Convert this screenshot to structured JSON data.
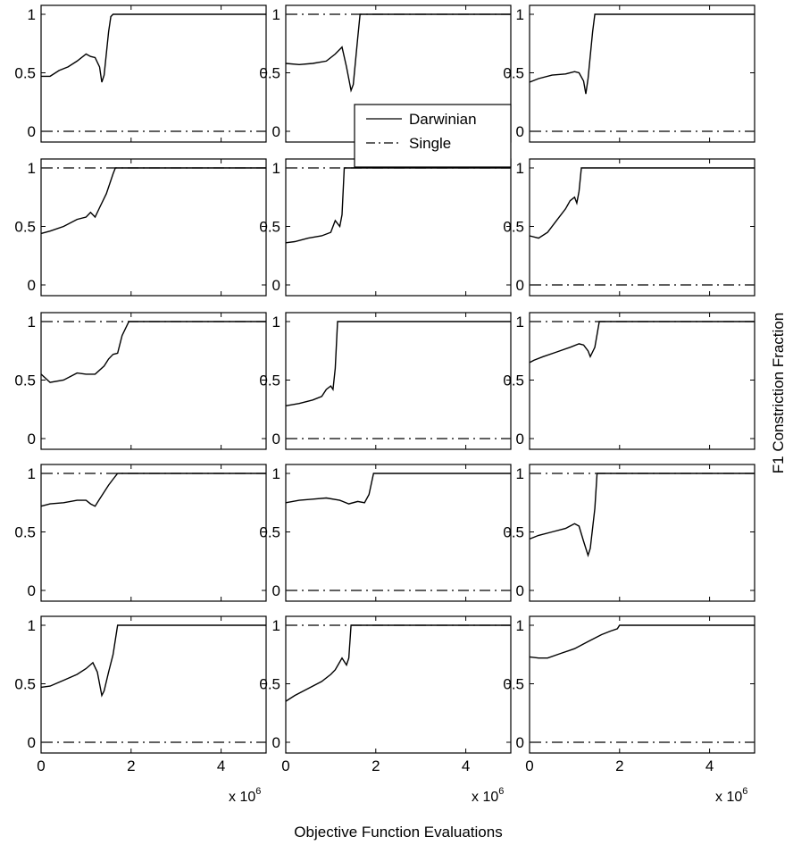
{
  "figure": {
    "xlabel": "Objective Function Evaluations",
    "ylabel": "F1 Constriction Fraction",
    "x_multiplier_prefix": "x 10",
    "x_multiplier_exp": "6",
    "legend": {
      "darwinian": "Darwinian",
      "single": "Single"
    }
  },
  "chart_data": {
    "type": "line",
    "layout": "5 rows x 3 columns small multiples",
    "x_range": [
      0,
      5
    ],
    "x_unit_note": "x 10^6",
    "y_range": [
      0,
      1
    ],
    "x_ticks": [
      "0",
      "2",
      "4"
    ],
    "y_ticks": [
      "0",
      "0.5",
      "1"
    ],
    "legend_position": "inside top-middle panel, lower-right",
    "series_styles": {
      "Darwinian": "solid",
      "Single": "dash-dot"
    },
    "panels": [
      {
        "single": 0,
        "darwinian": [
          [
            0,
            0.47
          ],
          [
            0.2,
            0.47
          ],
          [
            0.4,
            0.52
          ],
          [
            0.6,
            0.55
          ],
          [
            0.8,
            0.6
          ],
          [
            1.0,
            0.66
          ],
          [
            1.1,
            0.64
          ],
          [
            1.2,
            0.63
          ],
          [
            1.3,
            0.55
          ],
          [
            1.35,
            0.42
          ],
          [
            1.4,
            0.48
          ],
          [
            1.5,
            0.85
          ],
          [
            1.55,
            0.98
          ],
          [
            1.6,
            1
          ],
          [
            5,
            1
          ]
        ]
      },
      {
        "single": 1,
        "darwinian": [
          [
            0,
            0.58
          ],
          [
            0.3,
            0.57
          ],
          [
            0.6,
            0.58
          ],
          [
            0.9,
            0.6
          ],
          [
            1.1,
            0.66
          ],
          [
            1.25,
            0.72
          ],
          [
            1.35,
            0.55
          ],
          [
            1.45,
            0.35
          ],
          [
            1.5,
            0.4
          ],
          [
            1.6,
            0.8
          ],
          [
            1.65,
            1
          ],
          [
            5,
            1
          ]
        ]
      },
      {
        "single": 0,
        "darwinian": [
          [
            0,
            0.42
          ],
          [
            0.2,
            0.45
          ],
          [
            0.5,
            0.48
          ],
          [
            0.8,
            0.49
          ],
          [
            1.0,
            0.51
          ],
          [
            1.1,
            0.5
          ],
          [
            1.2,
            0.43
          ],
          [
            1.25,
            0.32
          ],
          [
            1.3,
            0.45
          ],
          [
            1.4,
            0.85
          ],
          [
            1.45,
            1
          ],
          [
            5,
            1
          ]
        ]
      },
      {
        "single": 1,
        "darwinian": [
          [
            0,
            0.44
          ],
          [
            0.2,
            0.46
          ],
          [
            0.5,
            0.5
          ],
          [
            0.8,
            0.56
          ],
          [
            1.0,
            0.58
          ],
          [
            1.1,
            0.62
          ],
          [
            1.2,
            0.58
          ],
          [
            1.3,
            0.66
          ],
          [
            1.45,
            0.78
          ],
          [
            1.6,
            0.95
          ],
          [
            1.65,
            1
          ],
          [
            5,
            1
          ]
        ]
      },
      {
        "single": 1,
        "darwinian": [
          [
            0,
            0.36
          ],
          [
            0.2,
            0.37
          ],
          [
            0.5,
            0.4
          ],
          [
            0.8,
            0.42
          ],
          [
            1.0,
            0.45
          ],
          [
            1.1,
            0.55
          ],
          [
            1.2,
            0.5
          ],
          [
            1.25,
            0.6
          ],
          [
            1.3,
            1
          ],
          [
            5,
            1
          ]
        ]
      },
      {
        "single": 0,
        "darwinian": [
          [
            0,
            0.42
          ],
          [
            0.2,
            0.4
          ],
          [
            0.4,
            0.45
          ],
          [
            0.6,
            0.55
          ],
          [
            0.8,
            0.65
          ],
          [
            0.9,
            0.72
          ],
          [
            1.0,
            0.75
          ],
          [
            1.05,
            0.7
          ],
          [
            1.1,
            0.8
          ],
          [
            1.15,
            1
          ],
          [
            5,
            1
          ]
        ]
      },
      {
        "single": 1,
        "darwinian": [
          [
            0,
            0.55
          ],
          [
            0.2,
            0.48
          ],
          [
            0.5,
            0.5
          ],
          [
            0.8,
            0.56
          ],
          [
            1.0,
            0.55
          ],
          [
            1.2,
            0.55
          ],
          [
            1.4,
            0.62
          ],
          [
            1.5,
            0.68
          ],
          [
            1.6,
            0.72
          ],
          [
            1.7,
            0.73
          ],
          [
            1.8,
            0.88
          ],
          [
            1.95,
            1
          ],
          [
            5,
            1
          ]
        ]
      },
      {
        "single": 0,
        "darwinian": [
          [
            0,
            0.28
          ],
          [
            0.3,
            0.3
          ],
          [
            0.6,
            0.33
          ],
          [
            0.8,
            0.36
          ],
          [
            0.9,
            0.42
          ],
          [
            1.0,
            0.45
          ],
          [
            1.05,
            0.42
          ],
          [
            1.1,
            0.6
          ],
          [
            1.15,
            1
          ],
          [
            5,
            1
          ]
        ]
      },
      {
        "single": 1,
        "darwinian": [
          [
            0,
            0.65
          ],
          [
            0.1,
            0.67
          ],
          [
            0.3,
            0.7
          ],
          [
            0.6,
            0.74
          ],
          [
            0.9,
            0.78
          ],
          [
            1.1,
            0.81
          ],
          [
            1.2,
            0.8
          ],
          [
            1.3,
            0.75
          ],
          [
            1.35,
            0.7
          ],
          [
            1.45,
            0.78
          ],
          [
            1.55,
            1
          ],
          [
            5,
            1
          ]
        ]
      },
      {
        "single": 1,
        "darwinian": [
          [
            0,
            0.72
          ],
          [
            0.2,
            0.74
          ],
          [
            0.5,
            0.75
          ],
          [
            0.8,
            0.77
          ],
          [
            1.0,
            0.77
          ],
          [
            1.1,
            0.74
          ],
          [
            1.2,
            0.72
          ],
          [
            1.3,
            0.78
          ],
          [
            1.5,
            0.9
          ],
          [
            1.6,
            0.95
          ],
          [
            1.7,
            1
          ],
          [
            5,
            1
          ]
        ]
      },
      {
        "single": 0,
        "darwinian": [
          [
            0,
            0.75
          ],
          [
            0.3,
            0.77
          ],
          [
            0.6,
            0.78
          ],
          [
            0.9,
            0.79
          ],
          [
            1.2,
            0.77
          ],
          [
            1.4,
            0.74
          ],
          [
            1.6,
            0.76
          ],
          [
            1.75,
            0.75
          ],
          [
            1.85,
            0.82
          ],
          [
            1.95,
            1
          ],
          [
            5,
            1
          ]
        ]
      },
      {
        "single": 1,
        "darwinian": [
          [
            0,
            0.44
          ],
          [
            0.2,
            0.47
          ],
          [
            0.5,
            0.5
          ],
          [
            0.8,
            0.53
          ],
          [
            1.0,
            0.57
          ],
          [
            1.1,
            0.55
          ],
          [
            1.2,
            0.42
          ],
          [
            1.3,
            0.3
          ],
          [
            1.35,
            0.36
          ],
          [
            1.45,
            0.7
          ],
          [
            1.5,
            1
          ],
          [
            5,
            1
          ]
        ]
      },
      {
        "single": 0,
        "darwinian": [
          [
            0,
            0.47
          ],
          [
            0.2,
            0.48
          ],
          [
            0.5,
            0.53
          ],
          [
            0.8,
            0.58
          ],
          [
            1.0,
            0.63
          ],
          [
            1.15,
            0.68
          ],
          [
            1.25,
            0.6
          ],
          [
            1.35,
            0.4
          ],
          [
            1.4,
            0.44
          ],
          [
            1.5,
            0.6
          ],
          [
            1.6,
            0.75
          ],
          [
            1.7,
            1
          ],
          [
            5,
            1
          ]
        ]
      },
      {
        "single": 1,
        "darwinian": [
          [
            0,
            0.35
          ],
          [
            0.2,
            0.4
          ],
          [
            0.5,
            0.46
          ],
          [
            0.8,
            0.52
          ],
          [
            1.0,
            0.58
          ],
          [
            1.1,
            0.62
          ],
          [
            1.25,
            0.72
          ],
          [
            1.35,
            0.66
          ],
          [
            1.4,
            0.72
          ],
          [
            1.45,
            1
          ],
          [
            5,
            1
          ]
        ]
      },
      {
        "single": 0,
        "darwinian": [
          [
            0,
            0.73
          ],
          [
            0.2,
            0.72
          ],
          [
            0.4,
            0.72
          ],
          [
            0.7,
            0.76
          ],
          [
            1.0,
            0.8
          ],
          [
            1.3,
            0.86
          ],
          [
            1.6,
            0.92
          ],
          [
            1.8,
            0.95
          ],
          [
            1.95,
            0.97
          ],
          [
            2.0,
            1
          ],
          [
            5,
            1
          ]
        ]
      }
    ]
  }
}
